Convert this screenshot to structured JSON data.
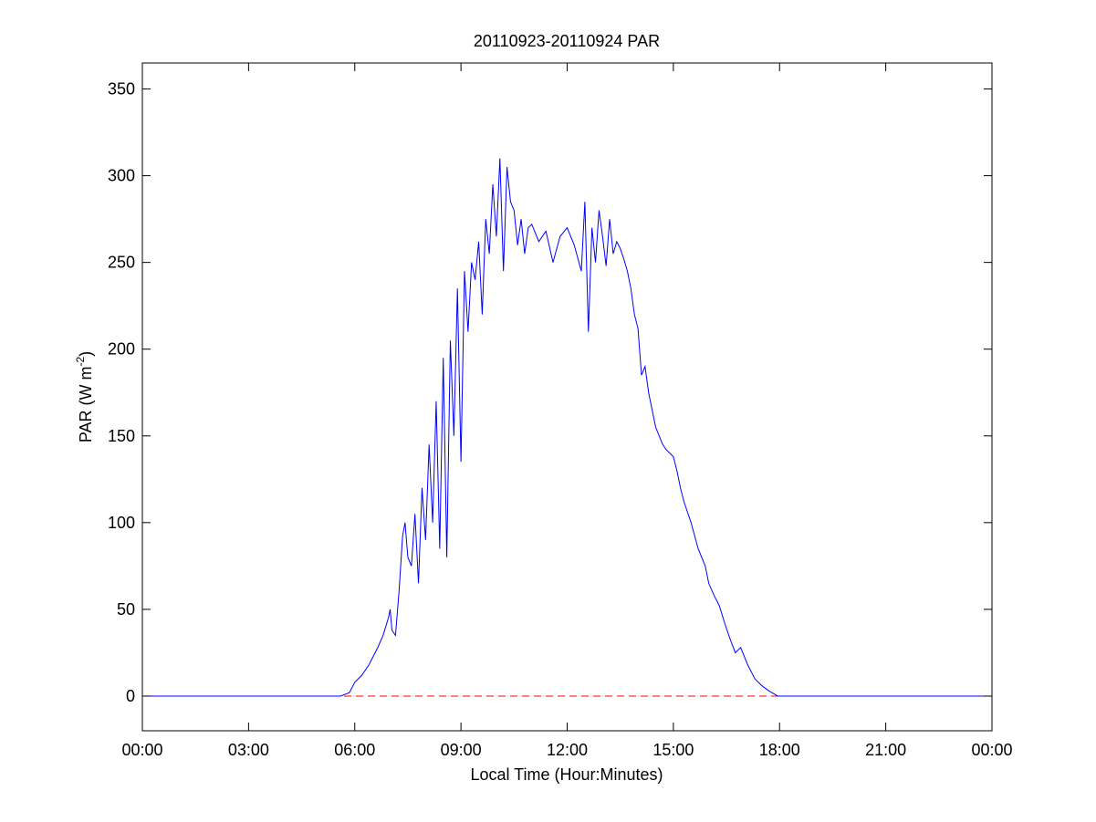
{
  "chart_data": {
    "type": "line",
    "title": "20110923-20110924 PAR",
    "xlabel": "Local Time (Hour:Minutes)",
    "ylabel": {
      "main": "PAR (W m",
      "superscript": "-2",
      "close": ")"
    },
    "xlim": [
      0,
      24
    ],
    "ylim": [
      -20,
      365
    ],
    "x_ticks": [
      0,
      3,
      6,
      9,
      12,
      15,
      18,
      21,
      24
    ],
    "x_tick_labels": [
      "00:00",
      "03:00",
      "06:00",
      "09:00",
      "12:00",
      "15:00",
      "18:00",
      "21:00",
      "00:00"
    ],
    "y_ticks": [
      0,
      50,
      100,
      150,
      200,
      250,
      300,
      350
    ],
    "y_tick_labels": [
      "0",
      "50",
      "100",
      "150",
      "200",
      "250",
      "300",
      "350"
    ],
    "grid": false,
    "series": [
      {
        "style": "solid",
        "color": "#0000ff",
        "x": [
          0.0,
          5.6,
          5.85,
          6.0,
          6.2,
          6.4,
          6.5,
          6.65,
          6.8,
          6.95,
          7.0,
          7.05,
          7.15,
          7.25,
          7.35,
          7.42,
          7.5,
          7.6,
          7.7,
          7.8,
          7.9,
          8.0,
          8.1,
          8.2,
          8.3,
          8.4,
          8.5,
          8.6,
          8.7,
          8.8,
          8.9,
          9.0,
          9.1,
          9.2,
          9.3,
          9.4,
          9.5,
          9.6,
          9.7,
          9.8,
          9.9,
          10.0,
          10.1,
          10.2,
          10.3,
          10.4,
          10.5,
          10.6,
          10.7,
          10.8,
          10.9,
          11.0,
          11.2,
          11.4,
          11.6,
          11.8,
          12.0,
          12.2,
          12.4,
          12.5,
          12.6,
          12.7,
          12.8,
          12.9,
          13.0,
          13.1,
          13.2,
          13.3,
          13.4,
          13.5,
          13.6,
          13.7,
          13.8,
          13.9,
          14.0,
          14.1,
          14.2,
          14.3,
          14.4,
          14.5,
          14.6,
          14.7,
          14.8,
          14.9,
          15.0,
          15.1,
          15.2,
          15.3,
          15.5,
          15.7,
          15.9,
          16.0,
          16.15,
          16.3,
          16.45,
          16.6,
          16.75,
          16.9,
          17.1,
          17.3,
          17.5,
          17.7,
          17.95,
          18.1,
          24.0
        ],
        "y": [
          0,
          0,
          2,
          8,
          12,
          18,
          22,
          28,
          35,
          45,
          50,
          38,
          35,
          60,
          92,
          100,
          80,
          75,
          105,
          65,
          120,
          90,
          145,
          100,
          170,
          85,
          195,
          80,
          205,
          150,
          235,
          135,
          245,
          210,
          250,
          240,
          262,
          220,
          275,
          255,
          295,
          265,
          310,
          245,
          305,
          285,
          280,
          260,
          275,
          255,
          270,
          272,
          262,
          268,
          250,
          265,
          270,
          260,
          245,
          285,
          210,
          270,
          250,
          280,
          265,
          248,
          275,
          255,
          262,
          258,
          252,
          245,
          235,
          220,
          212,
          185,
          190,
          175,
          165,
          155,
          150,
          145,
          142,
          140,
          138,
          130,
          120,
          112,
          100,
          85,
          75,
          65,
          58,
          52,
          42,
          33,
          25,
          28,
          18,
          10,
          6,
          3,
          0,
          0,
          0
        ]
      },
      {
        "style": "dashed",
        "color": "#ff0000",
        "x": [
          0,
          24
        ],
        "y": [
          0,
          0
        ]
      }
    ]
  }
}
